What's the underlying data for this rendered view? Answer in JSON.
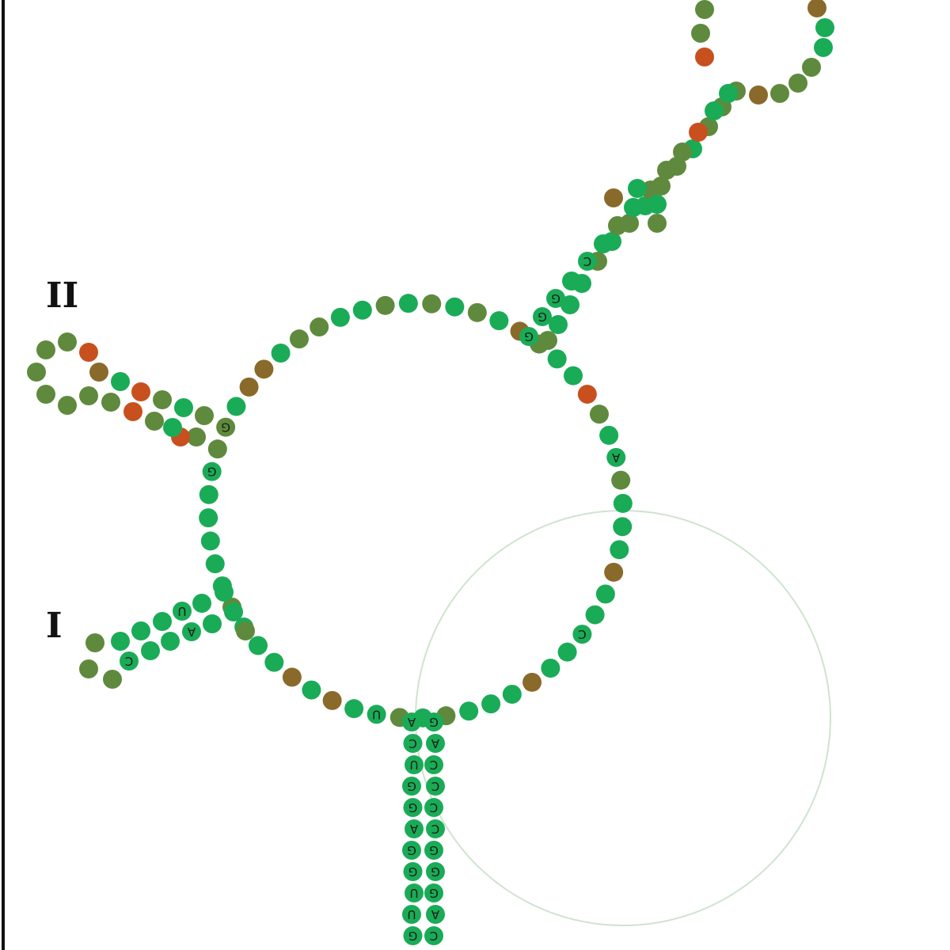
{
  "labels": {
    "stem_I": "I",
    "stem_II": "II"
  },
  "colors": {
    "green": "#1aab57",
    "olive": "#5f8a3d",
    "brown": "#8a6a2a",
    "red": "#c8501e",
    "backbone": "#cfe3cf",
    "frame": "#111111"
  },
  "letters": {
    "A": "A",
    "C": "C",
    "G": "G",
    "U": "U"
  }
}
